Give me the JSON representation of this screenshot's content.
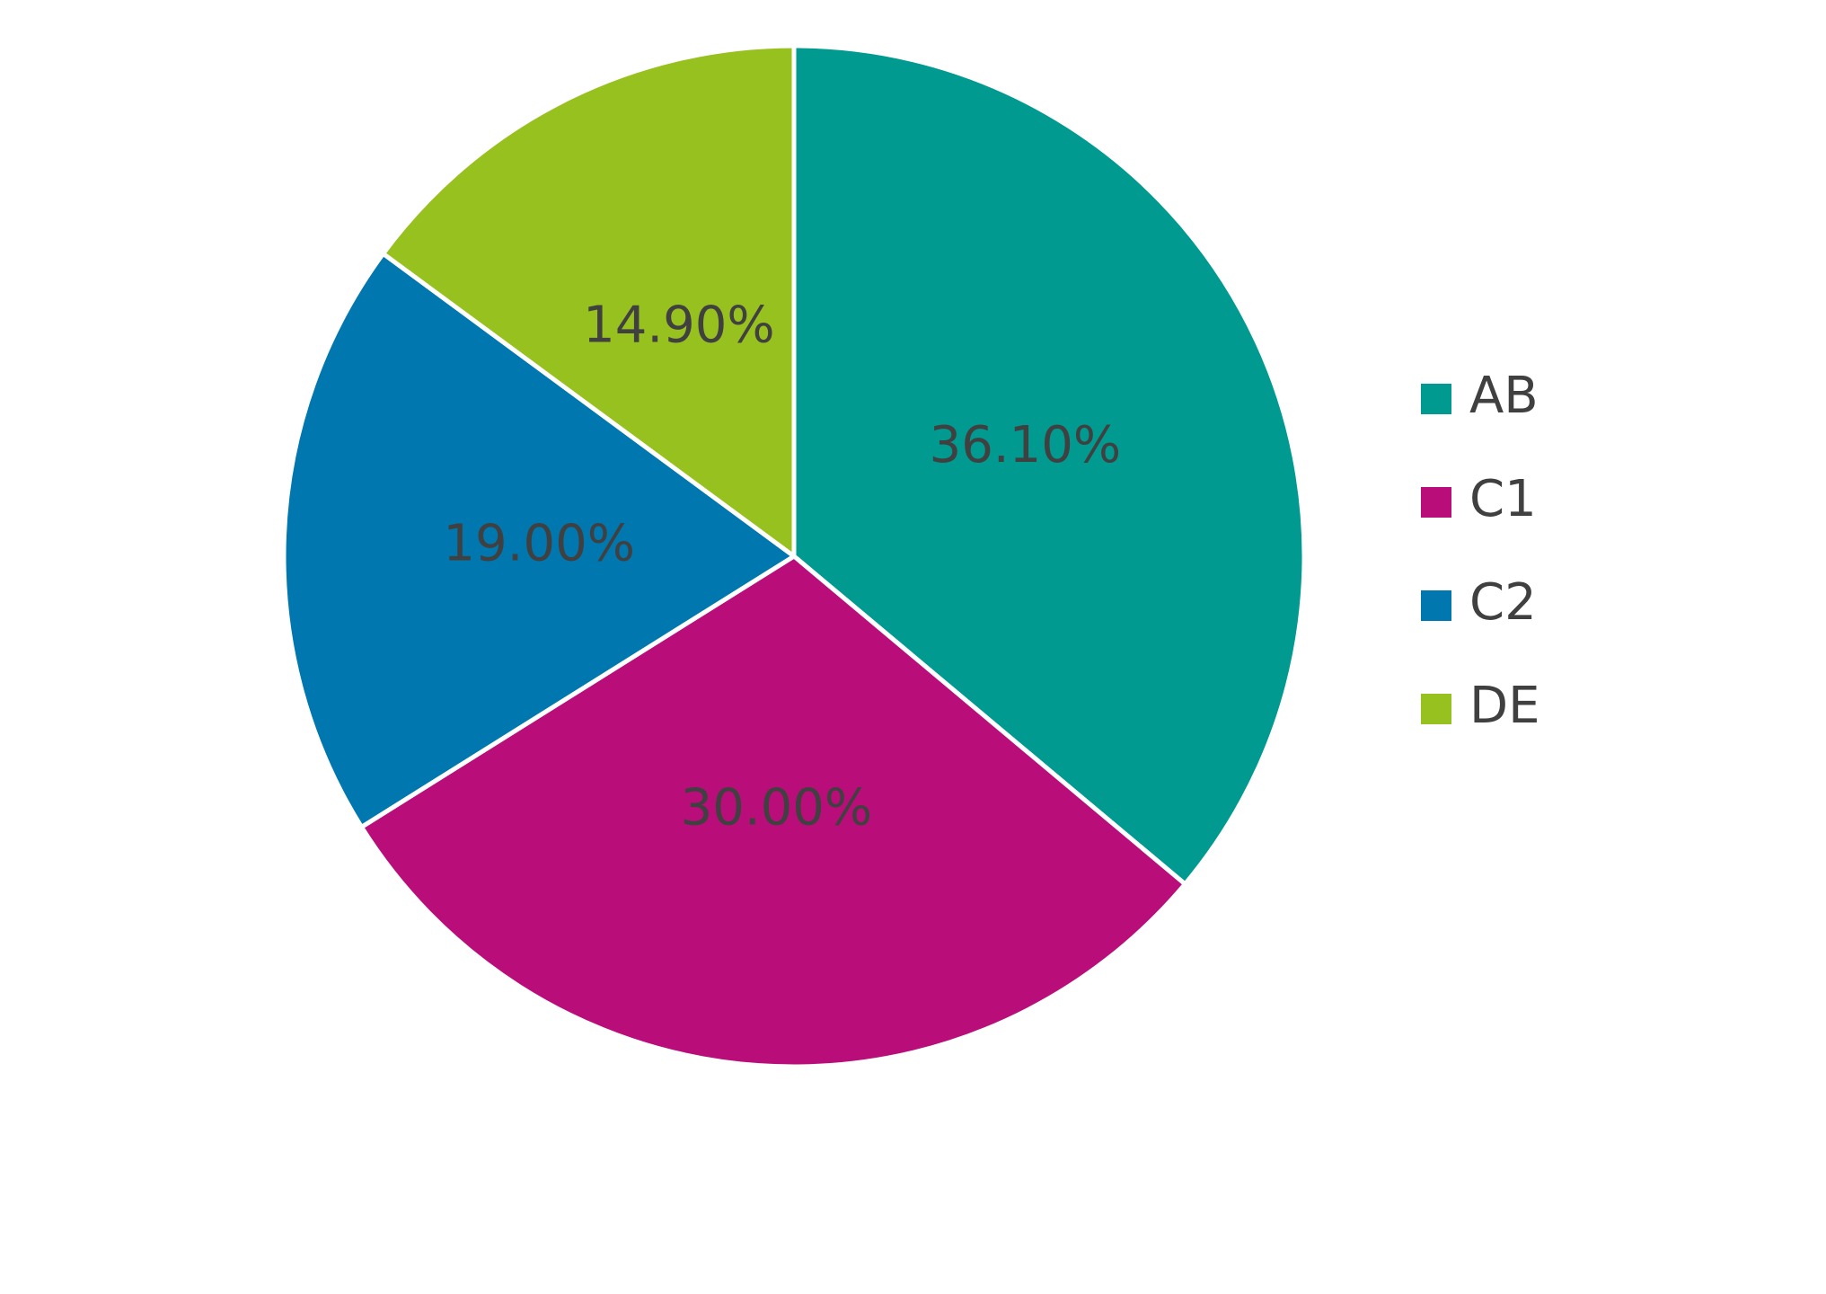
{
  "chart_data": {
    "type": "pie",
    "categories": [
      "AB",
      "C1",
      "C2",
      "DE"
    ],
    "values": [
      36.1,
      30,
      19,
      14.9
    ],
    "value_labels": [
      "36.10%",
      "30.00%",
      "19.00%",
      "14.90%"
    ],
    "colors": [
      "#009a90",
      "#b90e7a",
      "#0077ae",
      "#97c11f"
    ],
    "legend": "right"
  }
}
